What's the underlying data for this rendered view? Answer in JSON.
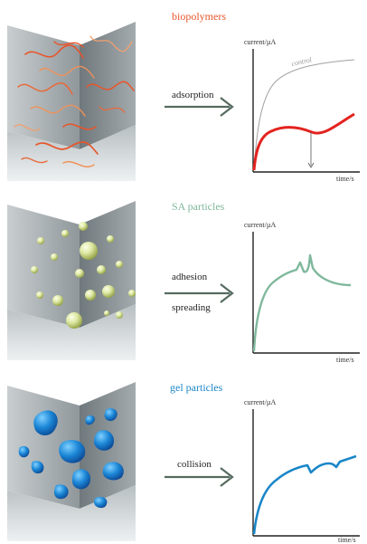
{
  "colors": {
    "biopolymers": "#e8552a",
    "sa_particles": "#7fb89c",
    "gel_particles": "#1a86c8",
    "control": "#a0a0a0",
    "arrow": "#556b5e",
    "axis": "#222222"
  },
  "panels": [
    {
      "title": "biopolymers",
      "process": [
        "adsorption"
      ],
      "y_axis_label": "current/µA",
      "x_axis_label": "time/s",
      "control_label": "control"
    },
    {
      "title": "SA particles",
      "process": [
        "adhesion",
        "spreading"
      ],
      "y_axis_label": "current/µA",
      "x_axis_label": "time/s"
    },
    {
      "title": "gel particles",
      "process": [
        "collision"
      ],
      "y_axis_label": "current/µA",
      "x_axis_label": "time/s"
    }
  ]
}
